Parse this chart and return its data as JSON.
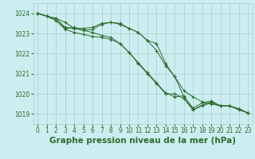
{
  "title": "Graphe pression niveau de la mer (hPa)",
  "bg_color": "#cceef0",
  "grid_color": "#aacccc",
  "line_color": "#2d6b2d",
  "ylim": [
    1018.5,
    1024.5
  ],
  "yticks": [
    1019,
    1020,
    1021,
    1022,
    1023,
    1024
  ],
  "xlim": [
    -0.5,
    23.5
  ],
  "xticks": [
    0,
    1,
    2,
    3,
    4,
    5,
    6,
    7,
    8,
    9,
    10,
    11,
    12,
    13,
    14,
    15,
    16,
    17,
    18,
    19,
    20,
    21,
    22,
    23
  ],
  "series": [
    [
      1024.0,
      1023.85,
      1023.75,
      1023.55,
      1023.25,
      1023.25,
      1023.3,
      1023.5,
      1023.55,
      1023.5,
      1023.25,
      1023.05,
      1022.65,
      1022.15,
      1021.4,
      1020.85,
      1020.15,
      1019.85,
      1019.6,
      1019.5,
      1019.4,
      1019.4,
      1019.25,
      1019.05
    ],
    [
      1024.0,
      1023.85,
      1023.65,
      1023.2,
      1023.05,
      1022.95,
      1022.85,
      1022.8,
      1022.7,
      1022.5,
      1022.05,
      1021.5,
      1021.0,
      1020.5,
      1020.0,
      1020.0,
      1019.75,
      1019.2,
      1019.4,
      1019.55,
      1019.4,
      1019.4,
      1019.2,
      1019.05
    ],
    [
      1024.0,
      1023.85,
      1023.65,
      1023.25,
      1023.3,
      1023.15,
      1023.05,
      1022.9,
      1022.8,
      1022.5,
      1022.05,
      1021.55,
      1021.05,
      1020.55,
      1020.05,
      1019.85,
      1019.9,
      1019.2,
      1019.45,
      1019.6,
      1019.4,
      1019.4,
      1019.25,
      1019.05
    ],
    [
      1024.0,
      1023.85,
      1023.75,
      1023.3,
      1023.25,
      1023.15,
      1023.2,
      1023.45,
      1023.55,
      1023.45,
      1023.25,
      1023.05,
      1022.65,
      1022.5,
      1021.5,
      1020.85,
      1019.85,
      1019.3,
      1019.55,
      1019.65,
      1019.4,
      1019.4,
      1019.25,
      1019.05
    ]
  ],
  "title_fontsize": 7.5,
  "tick_fontsize": 5.5,
  "xlabel_fontsize": 7.5
}
